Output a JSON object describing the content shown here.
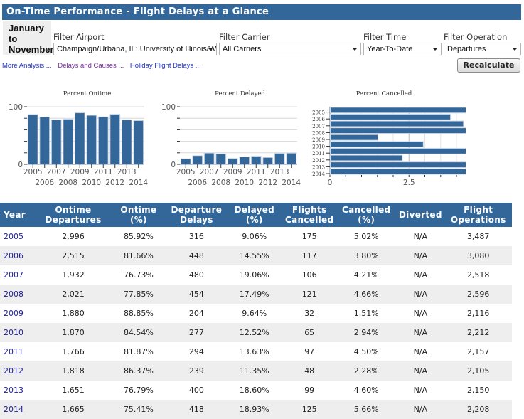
{
  "header": {
    "title": "On-Time Performance - Flight Delays at a Glance"
  },
  "period": {
    "line1": "January",
    "line2": "to",
    "line3": "November"
  },
  "filters": [
    {
      "label": "Filter Airport",
      "value": "Champaign/Urbana, IL: University of Illinois/W"
    },
    {
      "label": "Filter Carrier",
      "value": "All Carriers"
    },
    {
      "label": "Filter Time",
      "value": "Year-To-Date"
    },
    {
      "label": "Filter Operation",
      "value": "Departures"
    }
  ],
  "links": [
    {
      "label": "More Analysis ...",
      "color": "#2233cc"
    },
    {
      "label": "Delays and Causes ...",
      "color": "#7a2aa0"
    },
    {
      "label": "Holiday Flight Delays ...",
      "color": "#2233cc"
    }
  ],
  "recalculate_label": "Recalculate",
  "colors": {
    "brand": "#336699",
    "bar": "#336699",
    "alt_row": "#eeeeee"
  },
  "chart_data": [
    {
      "type": "bar",
      "title": "Percent Ontime",
      "categories": [
        "2005",
        "2006",
        "2007",
        "2008",
        "2009",
        "2010",
        "2011",
        "2012",
        "2013",
        "2014"
      ],
      "values": [
        85.92,
        81.66,
        76.73,
        77.85,
        88.85,
        84.54,
        81.87,
        86.37,
        76.79,
        75.41
      ],
      "ylim": [
        0,
        100
      ],
      "yticks": [
        "0",
        "100"
      ],
      "xlabel": "",
      "ylabel": "",
      "grid": true
    },
    {
      "type": "bar",
      "title": "Percent Delayed",
      "categories": [
        "2005",
        "2006",
        "2007",
        "2008",
        "2009",
        "2010",
        "2011",
        "2012",
        "2013",
        "2014"
      ],
      "values": [
        9.06,
        14.55,
        19.06,
        17.49,
        9.64,
        12.52,
        13.63,
        11.35,
        18.6,
        18.93
      ],
      "ylim": [
        0,
        100
      ],
      "yticks": [
        "0",
        "100"
      ],
      "xlabel": "",
      "ylabel": "",
      "grid": true
    },
    {
      "type": "bar",
      "orientation": "horizontal",
      "title": "Percent Cancelled",
      "categories": [
        "2005",
        "2006",
        "2007",
        "2008",
        "2009",
        "2010",
        "2011",
        "2012",
        "2013",
        "2014"
      ],
      "values": [
        5.02,
        3.8,
        4.21,
        4.66,
        1.51,
        2.94,
        4.5,
        2.28,
        4.6,
        5.66
      ],
      "xlim": [
        0,
        7.5
      ],
      "xticks": [
        "0",
        "2.5",
        "5",
        "7.5"
      ],
      "xlabel": "",
      "ylabel": "",
      "grid": true
    }
  ],
  "table": {
    "headers": [
      [
        "Year"
      ],
      [
        "Ontime",
        "Departures"
      ],
      [
        "Ontime",
        "(%)"
      ],
      [
        "Departure",
        "Delays"
      ],
      [
        "Delayed",
        "(%)"
      ],
      [
        "Flights",
        "Cancelled"
      ],
      [
        "Cancelled",
        "(%)"
      ],
      [
        "Diverted"
      ],
      [
        "Flight",
        "Operations"
      ]
    ],
    "rows": [
      [
        "2005",
        "2,996",
        "85.92%",
        "316",
        "9.06%",
        "175",
        "5.02%",
        "N/A",
        "3,487"
      ],
      [
        "2006",
        "2,515",
        "81.66%",
        "448",
        "14.55%",
        "117",
        "3.80%",
        "N/A",
        "3,080"
      ],
      [
        "2007",
        "1,932",
        "76.73%",
        "480",
        "19.06%",
        "106",
        "4.21%",
        "N/A",
        "2,518"
      ],
      [
        "2008",
        "2,021",
        "77.85%",
        "454",
        "17.49%",
        "121",
        "4.66%",
        "N/A",
        "2,596"
      ],
      [
        "2009",
        "1,880",
        "88.85%",
        "204",
        "9.64%",
        "32",
        "1.51%",
        "N/A",
        "2,116"
      ],
      [
        "2010",
        "1,870",
        "84.54%",
        "277",
        "12.52%",
        "65",
        "2.94%",
        "N/A",
        "2,212"
      ],
      [
        "2011",
        "1,766",
        "81.87%",
        "294",
        "13.63%",
        "97",
        "4.50%",
        "N/A",
        "2,157"
      ],
      [
        "2012",
        "1,818",
        "86.37%",
        "239",
        "11.35%",
        "48",
        "2.28%",
        "N/A",
        "2,105"
      ],
      [
        "2013",
        "1,651",
        "76.79%",
        "400",
        "18.60%",
        "99",
        "4.60%",
        "N/A",
        "2,150"
      ],
      [
        "2014",
        "1,665",
        "75.41%",
        "418",
        "18.93%",
        "125",
        "5.66%",
        "N/A",
        "2,208"
      ]
    ]
  }
}
